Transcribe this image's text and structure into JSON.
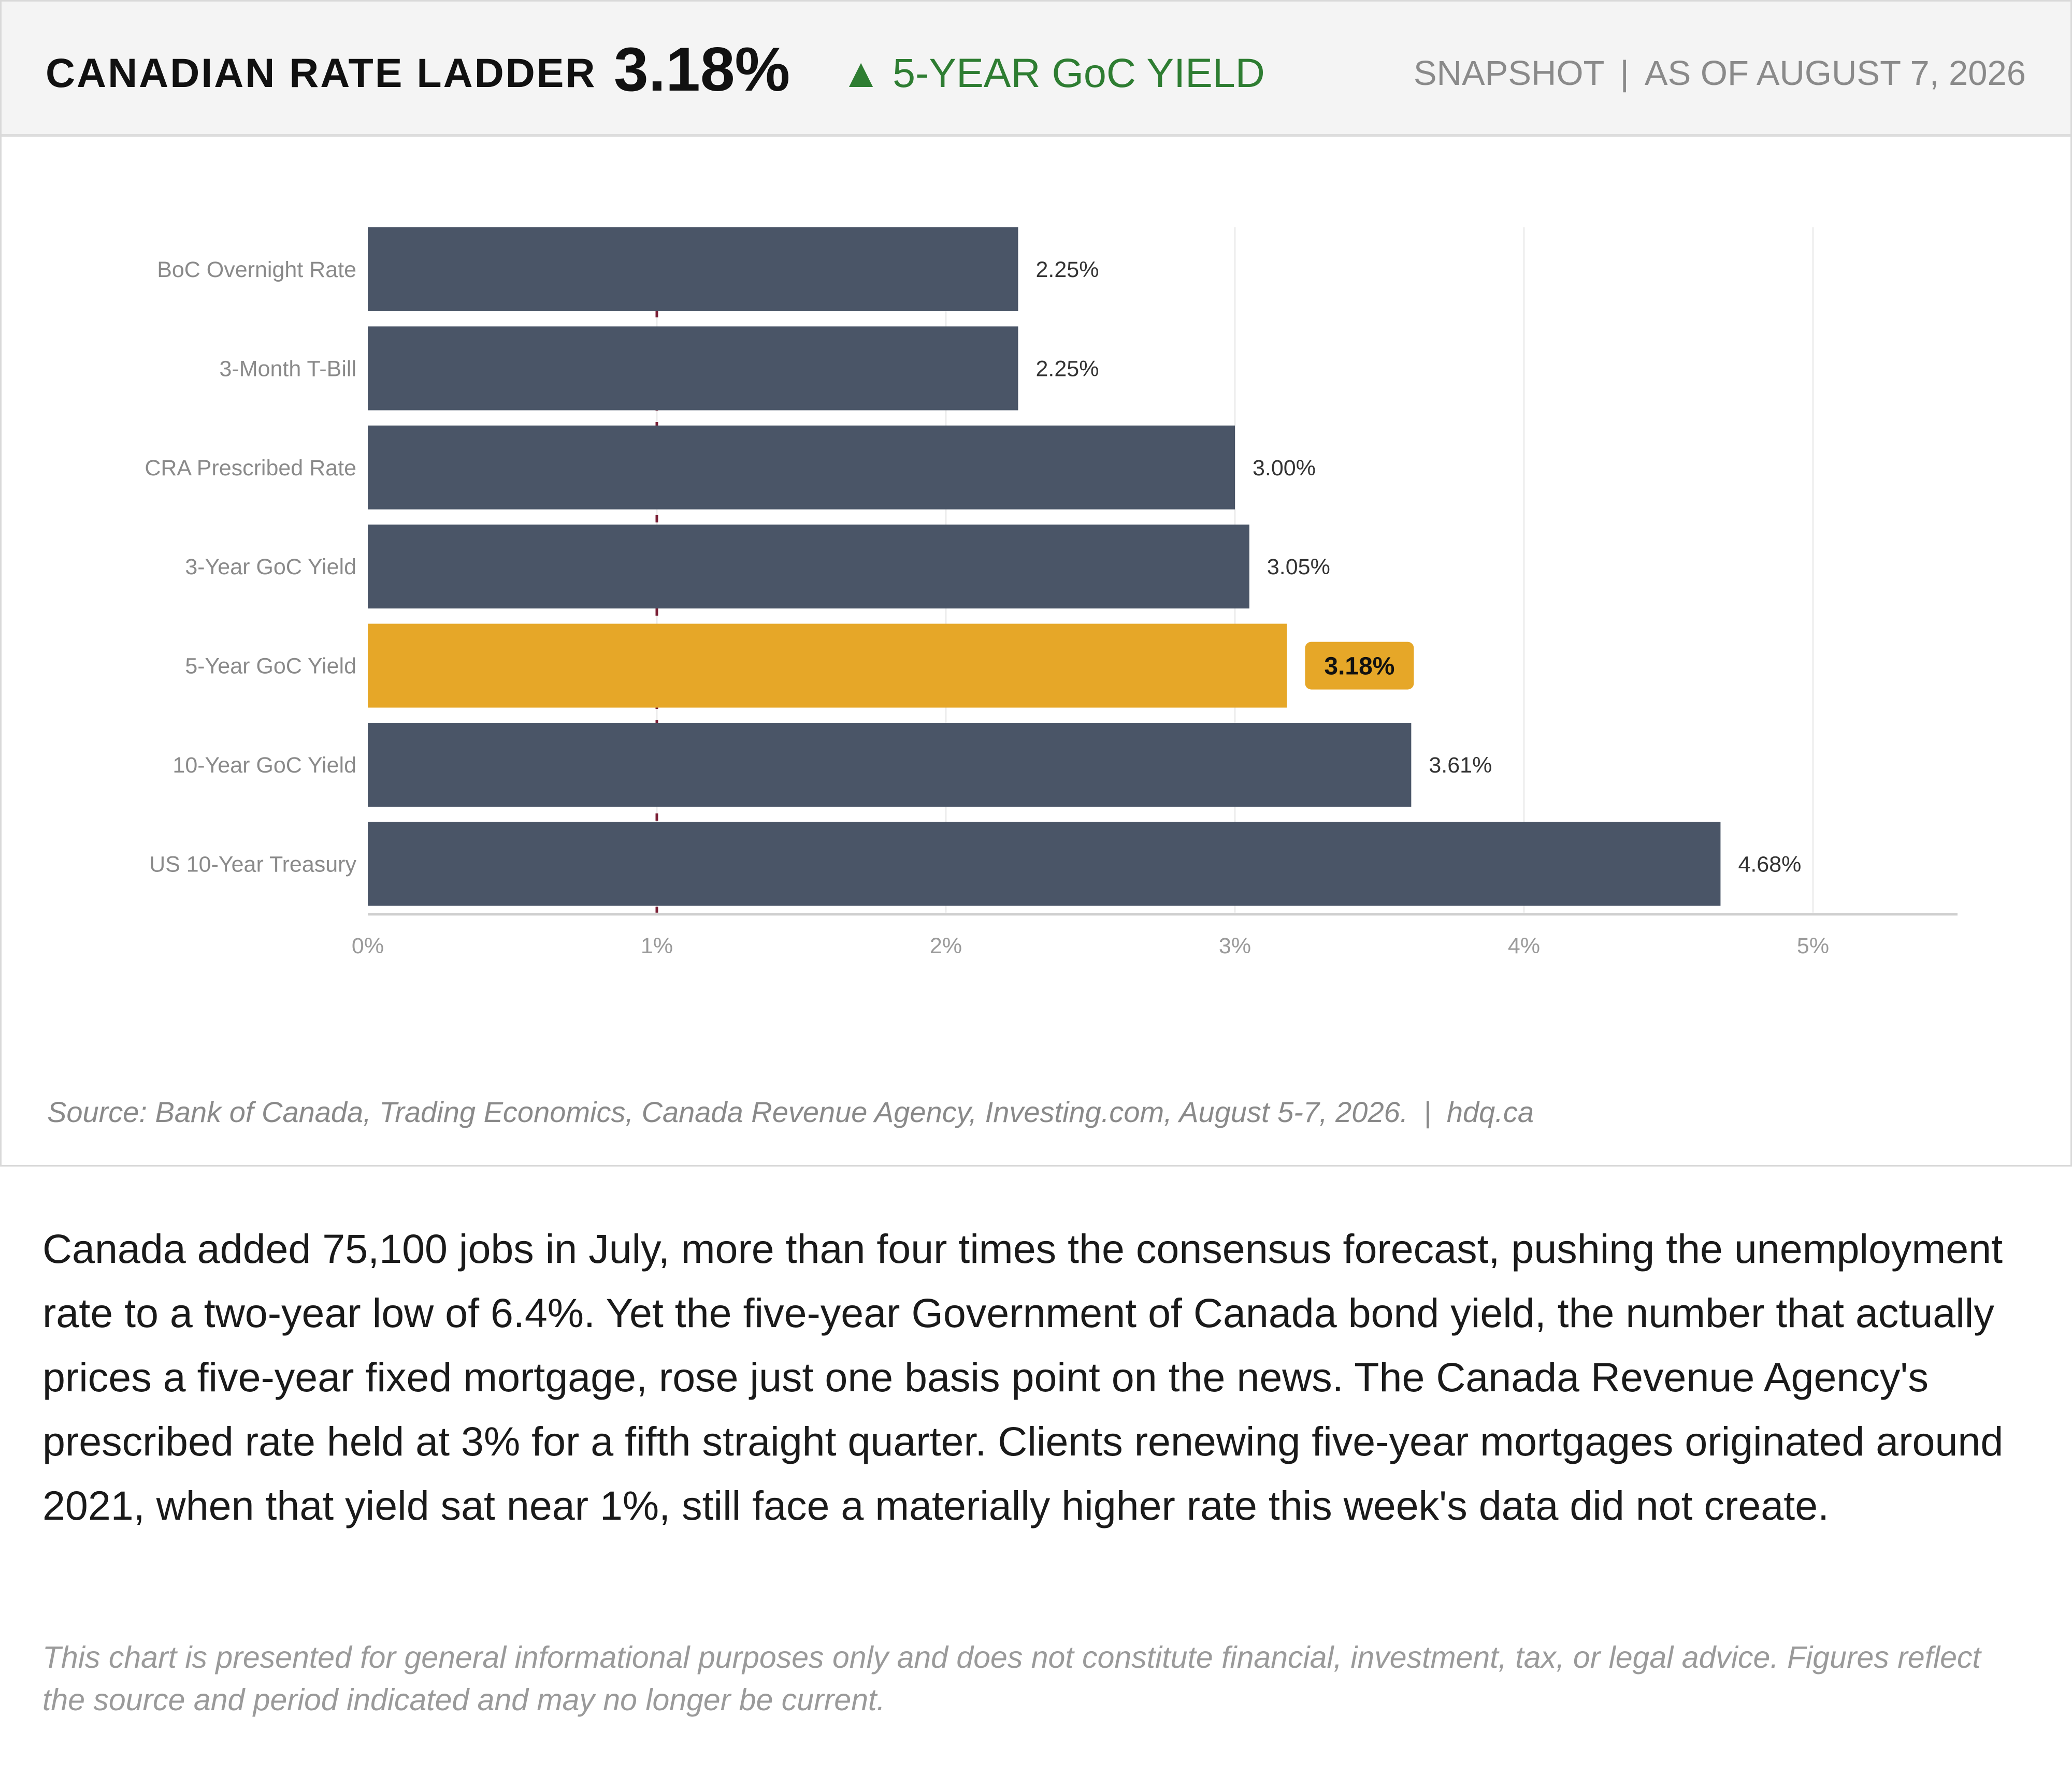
{
  "header": {
    "title": "CANADIAN RATE LADDER",
    "value": "3.18%",
    "change_arrow": "▲",
    "change_label": "5-YEAR GoC YIELD",
    "snapshot": "SNAPSHOT",
    "separator": "|",
    "as_of": "AS OF AUGUST 7, 2026",
    "change_color": "#2e7d32"
  },
  "chart_data": {
    "type": "bar",
    "orientation": "horizontal",
    "categories": [
      "BoC Overnight Rate",
      "3-Month T-Bill",
      "CRA Prescribed Rate",
      "3-Year GoC Yield",
      "5-Year GoC Yield",
      "10-Year GoC Yield",
      "US 10-Year Treasury"
    ],
    "values": [
      2.25,
      2.25,
      3.0,
      3.05,
      3.18,
      3.61,
      4.68
    ],
    "value_labels": [
      "2.25%",
      "2.25%",
      "3.00%",
      "3.05%",
      "3.18%",
      "3.61%",
      "4.68%"
    ],
    "highlight_index": 4,
    "x_ticks": [
      0,
      1,
      2,
      3,
      4,
      5
    ],
    "x_tick_labels": [
      "0%",
      "1%",
      "2%",
      "3%",
      "4%",
      "5%"
    ],
    "xlim": [
      0,
      5.5
    ],
    "reference_line": 1,
    "grid": true,
    "bar_color": "#4a5567",
    "highlight_color": "#e6a728",
    "reference_line_color": "#7a1f35"
  },
  "source": {
    "text": "Source: Bank of Canada, Trading Economics, Canada Revenue Agency, Investing.com, August 5-7, 2026.",
    "separator": "|",
    "site": "hdq.ca"
  },
  "commentary": "Canada added 75,100 jobs in July, more than four times the consensus forecast, pushing the unemployment rate to a two-year low of 6.4%. Yet the five-year Government of Canada bond yield, the number that actually prices a five-year fixed mortgage, rose just one basis point on the news. The Canada Revenue Agency's prescribed rate held at 3% for a fifth straight quarter. Clients renewing five-year mortgages originated around 2021, when that yield sat near 1%, still face a materially higher rate this week's data did not create.",
  "disclaimer": "This chart is presented for general informational purposes only and does not constitute financial, investment, tax, or legal advice. Figures reflect the source and period indicated and may no longer be current."
}
